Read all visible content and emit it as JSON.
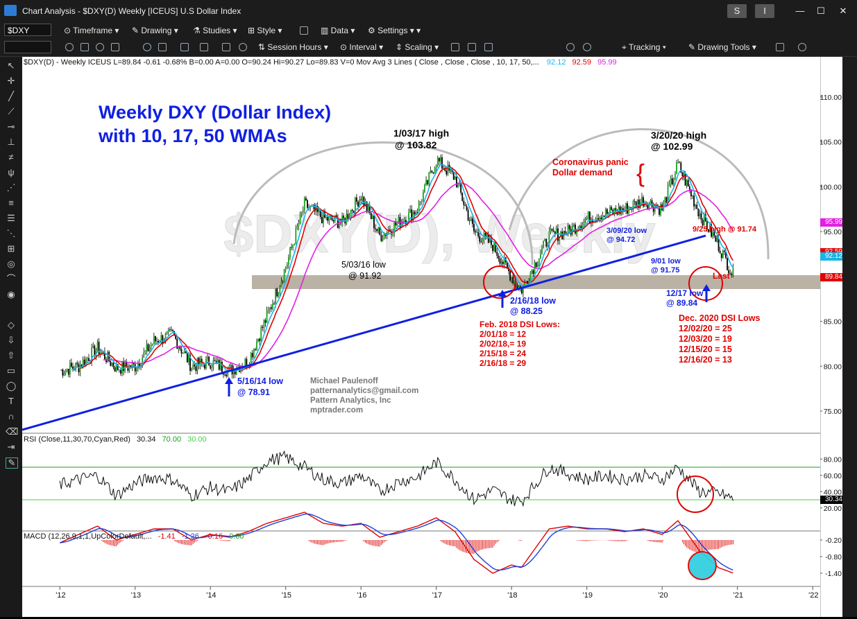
{
  "window": {
    "title": "Chart Analysis - $DXY(D) Weekly [ICEUS] U.S Dollar Index",
    "controls": [
      "S",
      "I",
      "✕"
    ]
  },
  "toolbar1": {
    "symbol": "$DXY",
    "items": [
      "Timeframe",
      "Drawing",
      "Studies",
      "Style",
      "Data",
      "Settings"
    ]
  },
  "toolbar2": {
    "items": [
      "Session Hours",
      "Interval",
      "Scaling",
      "Tracking",
      "Drawing Tools"
    ]
  },
  "price_header": {
    "text": "$DXY(D) - Weekly  ICEUS  L=89.84  -0.61  -0.68%  B=0.00  A=0.00  O=90.24  Hi=90.27  Lo=89.83  V=0  Mov Avg 3 Lines (  Close ,  Close ,  Close , 10, 17, 50,...",
    "ma10": "92.12",
    "ma17": "92.59",
    "ma50": "95.99"
  },
  "rsi_header": {
    "text": "RSI (Close,11,30,70,Cyan,Red)",
    "value": "30.34",
    "ob": "70.00",
    "os": "30.00"
  },
  "macd_header": {
    "text": "MACD (12,26,9,1,1,UpColorDefault,...",
    "v1": "-1.41",
    "v2": "-1.26",
    "v3": "-0.16",
    "v4": "0.00"
  },
  "annotations": {
    "main_title_1": "Weekly DXY (Dollar Index)",
    "main_title_2": "with 10, 17, 50 WMAs",
    "high_2017_1": "1/03/17 high",
    "high_2017_2": "@ 103.82",
    "high_2020_1": "3/20/20 high",
    "high_2020_2": "@ 102.99",
    "corona_1": "Coronavirus panic",
    "corona_2": "Dollar demand",
    "low_2016_1": "5/03/16 low",
    "low_2016_2": "@ 91.92",
    "low_2014_1": "5/16/14 low",
    "low_2014_2": "@ 78.91",
    "low_2018_1": "2/16/18 low",
    "low_2018_2": "@ 88.25",
    "dsi2018_title": "Feb. 2018 DSI Lows:",
    "dsi2018_lines": [
      "2/01/18 = 12",
      "2/02/18,= 19",
      "2/15/18 = 24",
      "2/16/18 = 29"
    ],
    "low_mar2020_1": "3/09/20 low",
    "low_mar2020_2": "@ 94.72",
    "high_sep2020": "9/25 high @ 91.74",
    "low_sep2020_1": "9/01 low",
    "low_sep2020_2": "@ 91.75",
    "last": "Last",
    "low_dec2020_1": "12/17 low",
    "low_dec2020_2": "@ 89.84",
    "dsi2020_title": "Dec. 2020 DSI Lows",
    "dsi2020_lines": [
      "12/02/20 = 25",
      "12/03/20 = 19",
      "12/15/20 = 15",
      "12/16/20 = 13"
    ],
    "author": [
      "Michael Paulenoff",
      "patternanalytics@gmail.com",
      "Pattern Analytics, Inc",
      "mptrader.com"
    ],
    "watermark": "$DXY(D), Weekly"
  },
  "axes": {
    "price_ticks": [
      "110.00",
      "105.00",
      "100.00",
      "95.00",
      "90.00",
      "85.00",
      "80.00",
      "75.00"
    ],
    "rsi_ticks": [
      "80.00",
      "60.00",
      "40.00",
      "20.00"
    ],
    "macd_ticks": [
      "-0.20",
      "-0.80",
      "-1.40"
    ],
    "years": [
      "'12",
      "'13",
      "'14",
      "'15",
      "'16",
      "'17",
      "'18",
      "'19",
      "'20",
      "'21",
      "'22"
    ],
    "badges": {
      "ma50": "95.99",
      "ma17": "92.59",
      "ma10": "92.12",
      "last": "89.84",
      "rsi": "30.34"
    }
  },
  "chart_data": {
    "type": "line",
    "title": "Weekly DXY (Dollar Index) with 10, 17, 50 WMAs",
    "x": [
      2012.0,
      2012.25,
      2012.5,
      2012.75,
      2013.0,
      2013.25,
      2013.5,
      2013.75,
      2014.0,
      2014.25,
      2014.5,
      2014.75,
      2015.0,
      2015.25,
      2015.5,
      2015.75,
      2016.0,
      2016.25,
      2016.5,
      2016.75,
      2017.0,
      2017.25,
      2017.5,
      2017.75,
      2018.0,
      2018.13,
      2018.5,
      2018.75,
      2019.0,
      2019.25,
      2019.5,
      2019.75,
      2020.0,
      2020.21,
      2020.5,
      2020.75,
      2020.96
    ],
    "series": [
      {
        "name": "$DXY(D)",
        "values": [
          79.5,
          80.0,
          82.0,
          79.8,
          80.0,
          82.8,
          83.5,
          80.0,
          80.5,
          79.5,
          80.5,
          85.5,
          91.0,
          98.0,
          96.5,
          96.0,
          99.0,
          94.5,
          96.0,
          97.5,
          103.0,
          101.0,
          95.0,
          93.5,
          90.0,
          88.5,
          94.5,
          95.0,
          96.5,
          97.0,
          97.5,
          98.5,
          97.5,
          102.5,
          97.0,
          93.5,
          89.84
        ]
      },
      {
        "name": "RSI (Close,11,30,70,Cyan,Red)",
        "values": [
          48,
          55,
          60,
          35,
          50,
          58,
          55,
          35,
          45,
          40,
          55,
          78,
          82,
          70,
          55,
          50,
          60,
          40,
          52,
          58,
          76,
          55,
          30,
          42,
          30,
          28,
          70,
          62,
          55,
          60,
          55,
          60,
          55,
          70,
          40,
          38,
          30.34
        ]
      },
      {
        "name": "MACD (12,26,9,1,1,UpColorDefault,...",
        "values": [
          -0.3,
          0.0,
          0.3,
          -0.2,
          0.0,
          0.2,
          0.2,
          -0.2,
          0.0,
          -0.1,
          0.1,
          0.4,
          0.6,
          0.8,
          0.4,
          0.3,
          0.4,
          -0.1,
          0.1,
          0.3,
          0.6,
          0.1,
          -0.9,
          -1.4,
          -1.1,
          -1.2,
          0.2,
          0.3,
          0.2,
          0.2,
          0.1,
          0.2,
          0.0,
          0.5,
          -0.6,
          -1.2,
          -1.41
        ]
      }
    ],
    "ylim": [
      72,
      113
    ],
    "rsi_levels": [
      30,
      70
    ],
    "xlim": [
      2011.5,
      2022.1
    ]
  }
}
